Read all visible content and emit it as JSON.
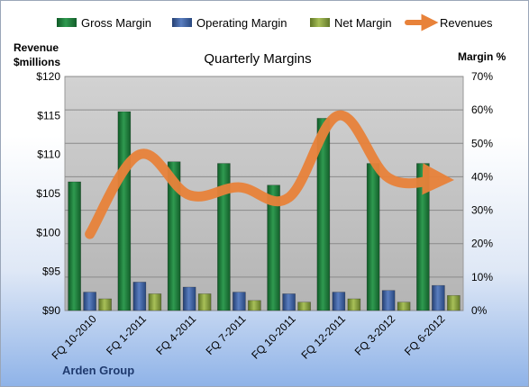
{
  "chart_data": {
    "type": "bar",
    "title": "Quarterly Margins",
    "y_left_label": [
      "Revenue",
      "$millions"
    ],
    "y_right_label": "Margin %",
    "categories": [
      "FQ 10-2010",
      "FQ 1-2011",
      "FQ 4-2011",
      "FQ 7-2011",
      "FQ 10-2011",
      "FQ 12-2011",
      "FQ 3-2012",
      "FQ 6-2012"
    ],
    "y_left_ticks": [
      "$90",
      "$95",
      "$100",
      "$105",
      "$110",
      "$115",
      "$120"
    ],
    "y_right_ticks": [
      "0%",
      "10%",
      "20%",
      "30%",
      "40%",
      "50%",
      "60%",
      "70%"
    ],
    "y_left_lim": [
      90,
      120
    ],
    "y_right_lim": [
      0,
      70
    ],
    "grid": true,
    "legend_position": "top",
    "series": [
      {
        "name": "Gross Margin",
        "axis": "right",
        "kind": "bar",
        "color": "#1e7a3c",
        "values": [
          38.5,
          59.5,
          44.5,
          44,
          37.5,
          57.5,
          44,
          44
        ]
      },
      {
        "name": "Operating Margin",
        "axis": "right",
        "kind": "bar",
        "color": "#3a5c9c",
        "values": [
          5.5,
          8.5,
          7,
          5.5,
          5,
          5.5,
          6,
          7.5
        ]
      },
      {
        "name": "Net Margin",
        "axis": "right",
        "kind": "bar",
        "color": "#8aa43a",
        "values": [
          3.5,
          5,
          5,
          3,
          2.5,
          3.5,
          2.5,
          4.5
        ]
      },
      {
        "name": "Revenues",
        "axis": "left",
        "kind": "line",
        "color": "#e8823a",
        "values": [
          99.8,
          110,
          104.8,
          105.8,
          104.5,
          115,
          107,
          106.8
        ]
      }
    ],
    "footer": "Arden Group"
  }
}
